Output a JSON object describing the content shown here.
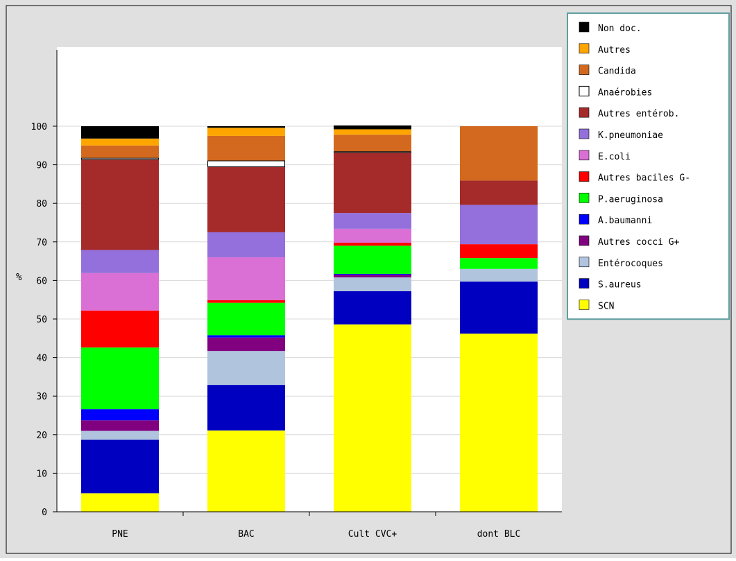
{
  "chart_data": {
    "type": "bar",
    "stacked": true,
    "title": "",
    "xlabel": "",
    "ylabel": "%",
    "ylim": [
      0,
      100
    ],
    "yticks": [
      0,
      10,
      20,
      30,
      40,
      50,
      60,
      70,
      80,
      90,
      100
    ],
    "grid": true,
    "legend_position": "top-right",
    "categories": [
      "PNE",
      "BAC",
      "Cult CVC+",
      "dont BLC"
    ],
    "series": [
      {
        "name": "SCN",
        "color": "#ffff00",
        "values": [
          4.8,
          21.1,
          48.6,
          46.2
        ]
      },
      {
        "name": "S.aureus",
        "color": "#0000c0",
        "values": [
          13.9,
          11.8,
          8.6,
          13.5
        ]
      },
      {
        "name": "Entérocoques",
        "color": "#b0c4de",
        "values": [
          2.3,
          8.8,
          3.6,
          3.3
        ]
      },
      {
        "name": "Autres cocci G+",
        "color": "#800080",
        "values": [
          2.7,
          3.5,
          0.7,
          0.0
        ]
      },
      {
        "name": "A.baumanni",
        "color": "#0000ff",
        "values": [
          2.9,
          0.6,
          0.2,
          0.0
        ]
      },
      {
        "name": "P.aeruginosa",
        "color": "#00ff00",
        "values": [
          16.0,
          8.4,
          7.3,
          2.8
        ]
      },
      {
        "name": "Autres baciles G-",
        "color": "#ff0000",
        "values": [
          9.6,
          0.7,
          0.8,
          3.6
        ]
      },
      {
        "name": "E.coli",
        "color": "#da70d6",
        "values": [
          9.7,
          11.1,
          3.6,
          0.0
        ]
      },
      {
        "name": "K.pneumoniae",
        "color": "#9370db",
        "values": [
          6.0,
          6.5,
          4.1,
          10.2
        ]
      },
      {
        "name": "Autres entérob.",
        "color": "#a52a2a",
        "values": [
          23.4,
          16.9,
          15.6,
          6.3
        ]
      },
      {
        "name": "Anaérobies",
        "color": "#ffffff",
        "values": [
          0.5,
          1.7,
          0.4,
          0.0
        ]
      },
      {
        "name": "Candida",
        "color": "#d2691e",
        "values": [
          3.2,
          6.4,
          4.3,
          14.1
        ]
      },
      {
        "name": "Autres",
        "color": "#ffa500",
        "values": [
          1.8,
          2.1,
          1.4,
          0.0
        ]
      },
      {
        "name": "Non doc.",
        "color": "#000000",
        "values": [
          3.2,
          0.4,
          1.0,
          0.0
        ]
      }
    ]
  },
  "legend_order": [
    "Non doc.",
    "Autres",
    "Candida",
    "Anaéroбies",
    "Autres entérob.",
    "K.pneumoniae",
    "E.coli",
    "Autres baciles G-",
    "P.aeruginosa",
    "A.baumanni",
    "Autres cocci G+",
    "Entérocoques",
    "S.aureus",
    "SCN"
  ],
  "legend_labels": {
    "Non doc.": "Non doc.",
    "Autres": "Autres",
    "Candida": "Candida",
    "Anaérobies": "Anaérobies",
    "Autres entérob.": "Autres entérob.",
    "K.pneumoniae": "K.pneumoniae",
    "E.coli": "E.coli",
    "Autres baciles G-": "Autres baciles G-",
    "P.aeruginosa": "P.aeruginosa",
    "A.baumanni": "A.baumanni",
    "Autres cocci G+": "Autres cocci G+",
    "Entérocoques": "Entérocoques",
    "S.aureus": "S.aureus",
    "SCN": "SCN"
  },
  "colors": {
    "outer_background": "#e0e0e0",
    "plot_background": "#ffffff",
    "legend_background": "#ffffff",
    "legend_border": "#5f9ea0",
    "grid": "#d8d8d8",
    "axis": "#000000",
    "text": "#000000"
  }
}
